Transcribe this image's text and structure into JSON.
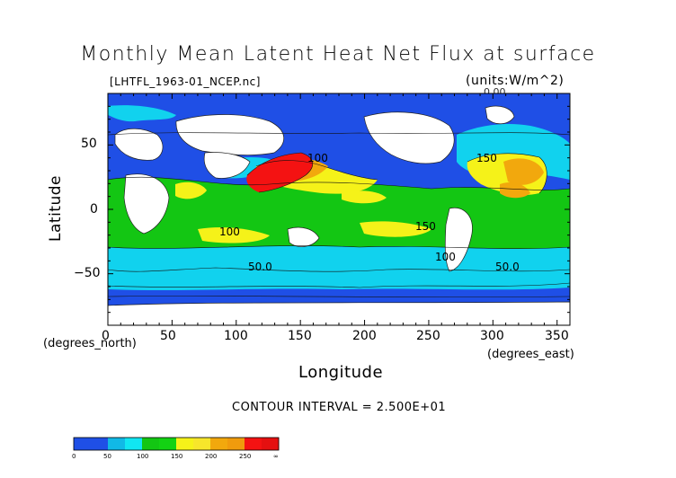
{
  "title": "Monthly Mean Latent Heat Net Flux at surface",
  "source": "[LHTFL_1963-01_NCEP.nc]",
  "units": "(units:W/m^2)",
  "units_extra": "0.00",
  "xlabel": "Longitude",
  "ylabel": "Latitude",
  "xcoord": "(degrees_east)",
  "ycoord": "(degrees_north)",
  "contour_interval": "CONTOUR INTERVAL = 2.500E+01",
  "x_ticks": [
    "0",
    "50",
    "100",
    "150",
    "200",
    "250",
    "300",
    "350"
  ],
  "y_ticks": [
    "50",
    "0",
    "−50"
  ],
  "map_labels": [
    "100",
    "100",
    "150",
    "150",
    "100",
    "50.0",
    "50.0"
  ],
  "colorbar": {
    "labels": [
      "0",
      "50",
      "100",
      "150",
      "200",
      "250",
      "∞"
    ],
    "colors": [
      "#1f4fe6",
      "#1f4fe6",
      "#11b9e6",
      "#11e6f2",
      "#13c613",
      "#13d213",
      "#f5f219",
      "#f7e62b",
      "#f2a80d",
      "#f09b0d",
      "#f41212",
      "#e51010"
    ]
  },
  "colors": {
    "very_low": "#1f4fe6",
    "low": "#11d2ee",
    "mid": "#13c613",
    "high": "#f5f219",
    "higher": "#f2a80d",
    "max": "#f41212"
  }
}
